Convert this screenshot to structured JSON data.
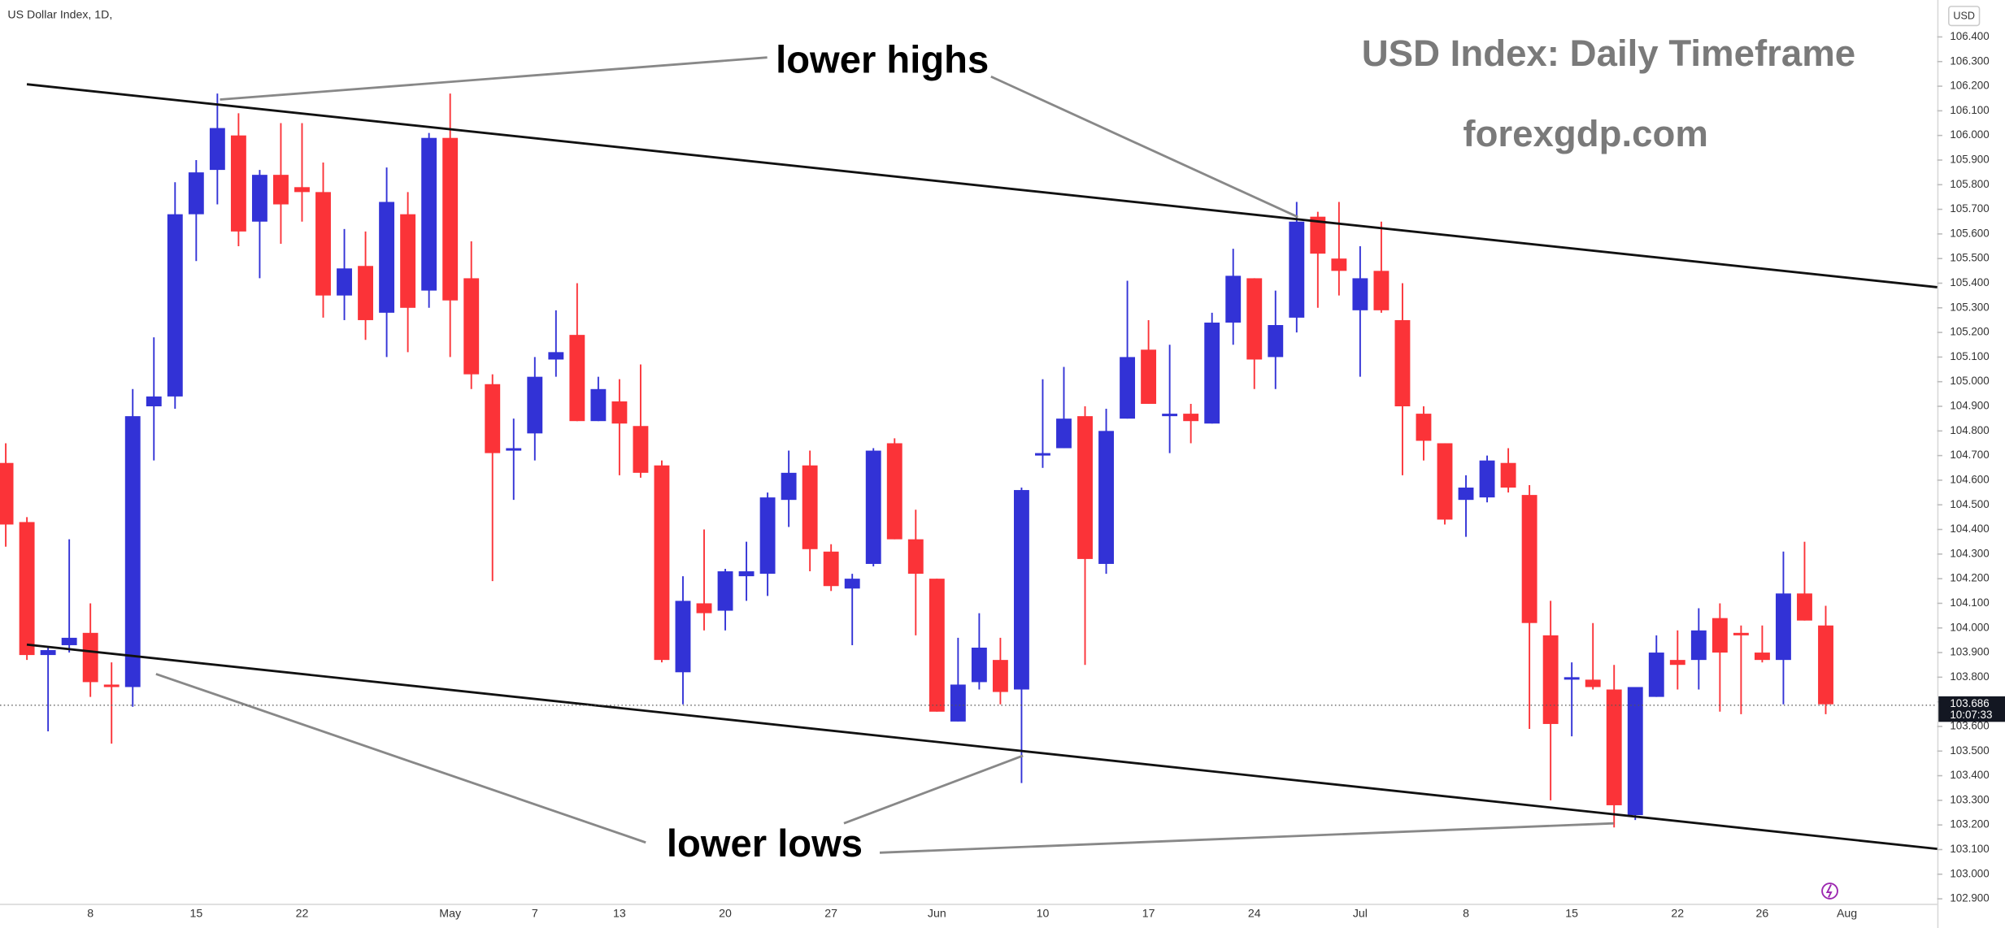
{
  "chart_data": {
    "type": "candlestick",
    "instrument": "US Dollar Index, 1D,",
    "currency": "USD",
    "title": "USD Index: Daily Timeframe",
    "subtitle": "forexgdp.com",
    "annotations": [
      "lower highs",
      "lower lows"
    ],
    "up_color": "#3232d6",
    "down_color": "#fb3338",
    "grid": false,
    "categories": [
      null,
      null,
      null,
      null,
      "8",
      null,
      null,
      null,
      null,
      "15",
      null,
      null,
      null,
      null,
      "22",
      null,
      null,
      null,
      null,
      null,
      null,
      "May",
      null,
      null,
      null,
      "7",
      null,
      null,
      null,
      "13",
      null,
      null,
      null,
      null,
      "20",
      null,
      null,
      null,
      null,
      "27",
      null,
      null,
      null,
      null,
      "Jun",
      null,
      null,
      null,
      null,
      "10",
      null,
      null,
      null,
      null,
      "17",
      null,
      null,
      null,
      null,
      "24",
      null,
      null,
      null,
      null,
      "Jul",
      null,
      null,
      null,
      null,
      "8",
      null,
      null,
      null,
      null,
      "15",
      null,
      null,
      null,
      null,
      "22",
      null,
      null,
      null,
      "26",
      null,
      null,
      null,
      "Aug"
    ],
    "open": [
      104.67,
      104.43,
      103.89,
      103.93,
      103.98,
      103.77,
      103.76,
      104.9,
      104.94,
      105.68,
      105.86,
      106.0,
      105.65,
      105.84,
      105.79,
      105.77,
      105.35,
      105.47,
      105.28,
      105.68,
      105.37,
      105.99,
      105.42,
      104.99,
      104.72,
      104.79,
      105.09,
      105.19,
      104.84,
      104.92,
      104.82,
      104.66,
      103.82,
      104.1,
      104.07,
      104.21,
      104.22,
      104.52,
      104.66,
      104.31,
      104.16,
      104.26,
      104.75,
      104.36,
      104.2,
      103.62,
      103.78,
      103.87,
      103.75,
      104.7,
      104.73,
      104.86,
      104.26,
      104.85,
      105.13,
      104.86,
      104.87,
      104.83,
      105.24,
      105.42,
      105.1,
      105.26,
      105.67,
      105.5,
      105.29,
      105.45,
      105.25,
      104.87,
      104.75,
      104.52,
      104.53,
      104.67,
      104.54,
      103.97,
      103.79,
      103.79,
      103.75,
      103.24,
      103.72,
      103.87,
      103.87,
      104.04,
      103.98,
      103.9,
      103.87,
      104.14,
      104.01,
      null
    ],
    "high": [
      104.75,
      104.45,
      103.92,
      104.36,
      104.1,
      103.86,
      104.97,
      105.18,
      105.81,
      105.9,
      106.17,
      106.09,
      105.86,
      106.05,
      106.05,
      105.89,
      105.62,
      105.61,
      105.87,
      105.77,
      106.01,
      106.17,
      105.57,
      105.03,
      104.85,
      105.1,
      105.29,
      105.4,
      105.02,
      105.01,
      105.07,
      104.68,
      104.21,
      104.4,
      104.24,
      104.35,
      104.55,
      104.72,
      104.72,
      104.34,
      104.22,
      104.73,
      104.77,
      104.48,
      104.2,
      103.96,
      104.06,
      103.96,
      104.57,
      105.01,
      105.06,
      104.9,
      104.89,
      105.41,
      105.25,
      105.15,
      104.91,
      105.28,
      105.54,
      105.42,
      105.37,
      105.73,
      105.69,
      105.73,
      105.55,
      105.65,
      105.4,
      104.9,
      104.75,
      104.62,
      104.7,
      104.73,
      104.58,
      104.11,
      103.86,
      104.02,
      103.85,
      103.76,
      103.97,
      103.99,
      104.08,
      104.1,
      104.01,
      104.01,
      104.31,
      104.35,
      104.09,
      null
    ],
    "low": [
      104.33,
      103.87,
      103.58,
      103.9,
      103.72,
      103.53,
      103.68,
      104.68,
      104.89,
      105.49,
      105.72,
      105.55,
      105.42,
      105.56,
      105.65,
      105.26,
      105.25,
      105.17,
      105.1,
      105.12,
      105.3,
      105.1,
      104.97,
      104.19,
      104.52,
      104.68,
      105.02,
      104.84,
      104.84,
      104.62,
      104.61,
      103.86,
      103.69,
      103.99,
      103.99,
      104.11,
      104.13,
      104.41,
      104.23,
      104.15,
      103.93,
      104.25,
      104.36,
      103.97,
      103.66,
      103.62,
      103.75,
      103.69,
      103.37,
      104.65,
      104.73,
      103.85,
      104.22,
      104.85,
      104.91,
      104.71,
      104.75,
      104.83,
      105.15,
      104.97,
      104.97,
      105.2,
      105.3,
      105.35,
      105.02,
      105.28,
      104.62,
      104.68,
      104.42,
      104.37,
      104.51,
      104.55,
      103.59,
      103.3,
      103.56,
      103.75,
      103.19,
      103.22,
      103.72,
      103.75,
      103.75,
      103.66,
      103.65,
      103.86,
      103.69,
      104.03,
      103.65,
      null
    ],
    "close": [
      104.42,
      103.89,
      103.91,
      103.96,
      103.78,
      103.76,
      104.86,
      104.94,
      105.68,
      105.85,
      106.03,
      105.61,
      105.84,
      105.72,
      105.77,
      105.35,
      105.46,
      105.25,
      105.73,
      105.3,
      105.99,
      105.33,
      105.03,
      104.71,
      104.73,
      105.02,
      105.12,
      104.84,
      104.97,
      104.83,
      104.63,
      103.87,
      104.11,
      104.06,
      104.23,
      104.23,
      104.53,
      104.63,
      104.32,
      104.17,
      104.2,
      104.72,
      104.36,
      104.22,
      103.66,
      103.77,
      103.92,
      103.74,
      104.56,
      104.71,
      104.85,
      104.28,
      104.8,
      105.1,
      104.91,
      104.87,
      104.84,
      105.24,
      105.43,
      105.09,
      105.23,
      105.65,
      105.52,
      105.45,
      105.42,
      105.29,
      104.9,
      104.76,
      104.44,
      104.57,
      104.68,
      104.57,
      104.02,
      103.61,
      103.8,
      103.76,
      103.28,
      103.76,
      103.9,
      103.85,
      103.99,
      103.9,
      103.97,
      103.87,
      104.14,
      104.03,
      103.69,
      null
    ],
    "last_price": 103.686,
    "countdown": "10:07:33",
    "ylim": [
      102.88,
      106.55
    ],
    "yticks": [
      {
        "value": 106.4,
        "label": "106.400"
      },
      {
        "value": 106.3,
        "label": "106.300"
      },
      {
        "value": 106.2,
        "label": "106.200"
      },
      {
        "value": 106.1,
        "label": "106.100"
      },
      {
        "value": 106.0,
        "label": "106.000"
      },
      {
        "value": 105.9,
        "label": "105.900"
      },
      {
        "value": 105.8,
        "label": "105.800"
      },
      {
        "value": 105.7,
        "label": "105.700"
      },
      {
        "value": 105.6,
        "label": "105.600"
      },
      {
        "value": 105.5,
        "label": "105.500"
      },
      {
        "value": 105.4,
        "label": "105.400"
      },
      {
        "value": 105.3,
        "label": "105.300"
      },
      {
        "value": 105.2,
        "label": "105.200"
      },
      {
        "value": 105.1,
        "label": "105.100"
      },
      {
        "value": 105.0,
        "label": "105.000"
      },
      {
        "value": 104.9,
        "label": "104.900"
      },
      {
        "value": 104.8,
        "label": "104.800"
      },
      {
        "value": 104.7,
        "label": "104.700"
      },
      {
        "value": 104.6,
        "label": "104.600"
      },
      {
        "value": 104.5,
        "label": "104.500"
      },
      {
        "value": 104.4,
        "label": "104.400"
      },
      {
        "value": 104.3,
        "label": "104.300"
      },
      {
        "value": 104.2,
        "label": "104.200"
      },
      {
        "value": 104.1,
        "label": "104.100"
      },
      {
        "value": 104.0,
        "label": "104.000"
      },
      {
        "value": 103.9,
        "label": "103.900"
      },
      {
        "value": 103.8,
        "label": "103.800"
      },
      {
        "value": 103.7,
        "label": "103.700"
      },
      {
        "value": 103.6,
        "label": "103.600"
      },
      {
        "value": 103.5,
        "label": "103.500"
      },
      {
        "value": 103.4,
        "label": "103.400"
      },
      {
        "value": 103.3,
        "label": "103.300"
      },
      {
        "value": 103.2,
        "label": "103.200"
      },
      {
        "value": 103.1,
        "label": "103.100"
      },
      {
        "value": 103.0,
        "label": "103.000"
      },
      {
        "value": 102.9,
        "label": "102.900"
      }
    ]
  }
}
